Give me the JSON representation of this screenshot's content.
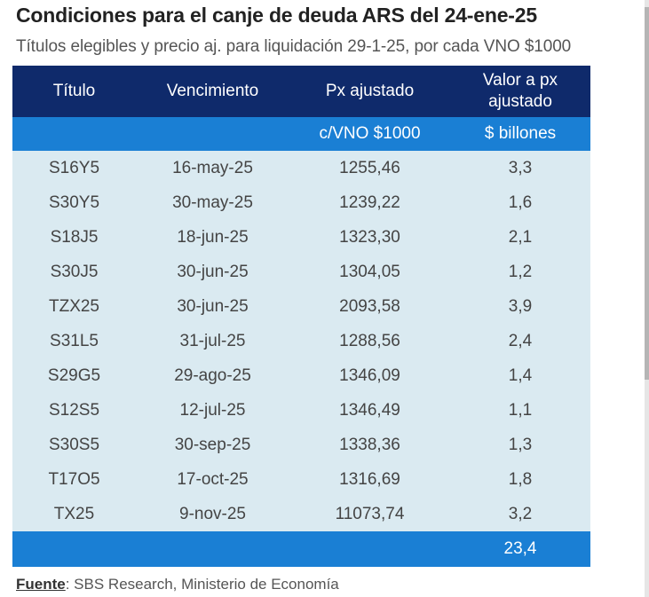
{
  "title": "Condiciones para el canje de deuda ARS del 24-ene-25",
  "subtitle": "Títulos elegibles y precio aj. para liquidación 29-1-25, por cada VNO $1000",
  "chart_data": {
    "type": "table",
    "columns": [
      "Título",
      "Vencimiento",
      "Px ajustado",
      "Valor a px ajustado"
    ],
    "units": [
      "",
      "",
      "c/VNO $1000",
      "$ billones"
    ],
    "rows": [
      [
        "S16Y5",
        "16-may-25",
        "1255,46",
        "3,3"
      ],
      [
        "S30Y5",
        "30-may-25",
        "1239,22",
        "1,6"
      ],
      [
        "S18J5",
        "18-jun-25",
        "1323,30",
        "2,1"
      ],
      [
        "S30J5",
        "30-jun-25",
        "1304,05",
        "1,2"
      ],
      [
        "TZX25",
        "30-jun-25",
        "2093,58",
        "3,9"
      ],
      [
        "S31L5",
        "31-jul-25",
        "1288,56",
        "2,4"
      ],
      [
        "S29G5",
        "29-ago-25",
        "1346,09",
        "1,4"
      ],
      [
        "S12S5",
        "12-jul-25",
        "1346,49",
        "1,1"
      ],
      [
        "S30S5",
        "30-sep-25",
        "1338,36",
        "1,3"
      ],
      [
        "T17O5",
        "17-oct-25",
        "1316,69",
        "1,8"
      ],
      [
        "TX25",
        "9-nov-25",
        "11073,74",
        "3,2"
      ]
    ],
    "total": "23,4"
  },
  "source": {
    "label": "Fuente",
    "text": ": SBS Research, Ministerio de Economía"
  },
  "colors": {
    "header_dark": "#0f2a6b",
    "header_light": "#1a7fd4",
    "row_bg": "#daeaf1"
  }
}
